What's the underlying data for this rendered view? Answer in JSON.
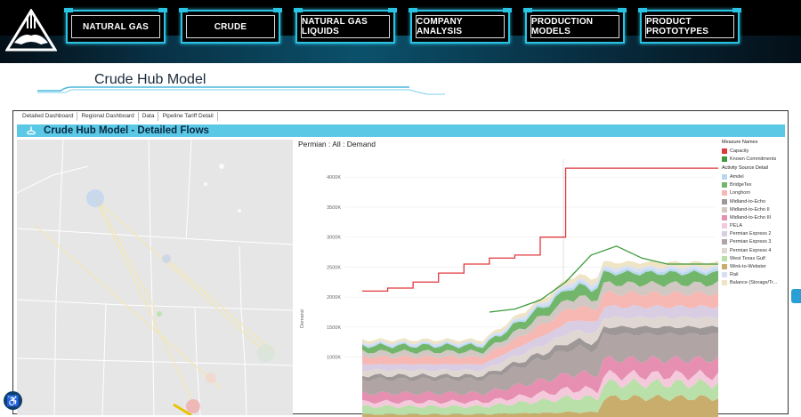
{
  "nav": {
    "items": [
      {
        "label": "NATURAL GAS"
      },
      {
        "label": "CRUDE"
      },
      {
        "label": "NATURAL GAS LIQUIDS"
      },
      {
        "label": "COMPANY ANALYSIS"
      },
      {
        "label": "PRODUCTION MODELS"
      },
      {
        "label": "PRODUCT PROTOTYPES"
      }
    ]
  },
  "page": {
    "title": "Crude Hub Model"
  },
  "tabs": [
    {
      "label": "Detailed Dashboard"
    },
    {
      "label": "Regional Dashboard"
    },
    {
      "label": "Data"
    },
    {
      "label": "Pipeline Tariff Detail"
    }
  ],
  "banner": {
    "title": "Crude Hub Model - Detailed Flows"
  },
  "chart_data": {
    "type": "area",
    "title": "Permian : All : Demand",
    "ylabel": "Demand",
    "ylim": [
      0,
      4300000
    ],
    "y_ticks": [
      "1000K",
      "1500K",
      "2000K",
      "2500K",
      "3000K",
      "3500K",
      "4000K"
    ],
    "series": [
      {
        "name": "Capacity",
        "type": "line",
        "color": "#e0393c",
        "values": [
          2100000,
          2150000,
          2250000,
          2400000,
          2550000,
          2650000,
          2700000,
          3000000,
          4150000,
          4150000,
          4150000,
          4150000,
          4150000,
          4150000,
          4150000
        ]
      },
      {
        "name": "Known Commitments",
        "type": "line",
        "color": "#3d9b3d",
        "values": [
          null,
          null,
          null,
          null,
          null,
          1750000,
          1800000,
          1950000,
          2250000,
          2700000,
          2850000,
          2650000,
          2550000,
          2550000,
          2550000
        ]
      }
    ]
  },
  "legend": {
    "measure_title": "Measure Names",
    "measures": [
      {
        "label": "Capacity",
        "color": "#e0393c"
      },
      {
        "label": "Known Commitments",
        "color": "#3d9b3d"
      }
    ],
    "activity_title": "Activity Source Detail",
    "activities": [
      {
        "label": "Amdel",
        "color": "#b7d8ee"
      },
      {
        "label": "BridgeTex",
        "color": "#71b66a"
      },
      {
        "label": "Longhorn",
        "color": "#f7b7b2"
      },
      {
        "label": "Midland-to-Echo",
        "color": "#9d9797"
      },
      {
        "label": "Midland-to-Echo II",
        "color": "#d1c8c3"
      },
      {
        "label": "Midland-to-Echo III",
        "color": "#e68fb0"
      },
      {
        "label": "PELA",
        "color": "#f4c9dc"
      },
      {
        "label": "Permian Express 2",
        "color": "#d9cde3"
      },
      {
        "label": "Permian Express 3",
        "color": "#b0a4a4"
      },
      {
        "label": "Permian Express 4",
        "color": "#e0d7d2"
      },
      {
        "label": "West Texas Gulf",
        "color": "#b9e0a9"
      },
      {
        "label": "Wink-to-Webster",
        "color": "#c9ad6c"
      },
      {
        "label": "Rail",
        "color": "#d7dff2"
      },
      {
        "label": "Balance (Storage/Tr...",
        "color": "#efe4c4"
      }
    ]
  }
}
